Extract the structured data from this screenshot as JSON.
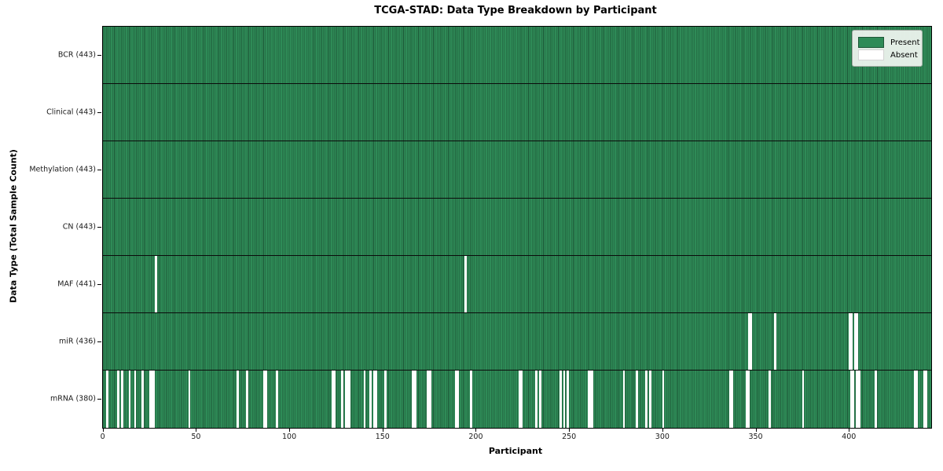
{
  "title": "TCGA-STAD: Data Type Breakdown by Participant",
  "colors": {
    "present": "#2e8b57",
    "present_edge": "#1d5737",
    "absent": "#ffffff",
    "row_separator": "#0b0b0b",
    "spine": "#000000"
  },
  "legend": {
    "present_label": "Present",
    "absent_label": "Absent",
    "position": "upper right"
  },
  "chart_data": {
    "type": "heatmap",
    "title": "TCGA-STAD: Data Type Breakdown by Participant",
    "xlabel": "Participant",
    "ylabel": "Data Type (Total Sample Count)",
    "legend": [
      "Present",
      "Absent"
    ],
    "legend_position": "upper right",
    "grid": false,
    "n_participants": 443,
    "x_ticks": [
      0,
      50,
      100,
      150,
      200,
      250,
      300,
      350,
      400
    ],
    "x_range": [
      0,
      443
    ],
    "cell_states": [
      "present",
      "absent"
    ],
    "rows": [
      {
        "key": "bcr",
        "label": "BCR (443)",
        "data_type": "BCR",
        "present_count": 443,
        "absent_count": 0,
        "absent_participants": []
      },
      {
        "key": "clinical",
        "label": "Clinical (443)",
        "data_type": "Clinical",
        "present_count": 443,
        "absent_count": 0,
        "absent_participants": []
      },
      {
        "key": "methylation",
        "label": "Methylation (443)",
        "data_type": "Methylation",
        "present_count": 443,
        "absent_count": 0,
        "absent_participants": []
      },
      {
        "key": "cn",
        "label": "CN (443)",
        "data_type": "CN",
        "present_count": 443,
        "absent_count": 0,
        "absent_participants": []
      },
      {
        "key": "maf",
        "label": "MAF (441)",
        "data_type": "MAF",
        "present_count": 441,
        "absent_count": 2,
        "absent_participants": [
          28,
          194
        ]
      },
      {
        "key": "mir",
        "label": "miR (436)",
        "data_type": "miR",
        "present_count": 436,
        "absent_count": 7,
        "absent_participants": [
          346,
          347,
          360,
          400,
          401,
          403,
          404
        ]
      },
      {
        "key": "mrna",
        "label": "mRNA (380)",
        "data_type": "mRNA",
        "present_count": 380,
        "absent_count": 63,
        "absent_participants": [
          2,
          8,
          10,
          14,
          17,
          21,
          25,
          26,
          27,
          46,
          72,
          77,
          86,
          87,
          93,
          123,
          124,
          128,
          130,
          131,
          132,
          140,
          143,
          145,
          146,
          151,
          166,
          167,
          174,
          175,
          189,
          190,
          197,
          223,
          224,
          232,
          234,
          245,
          247,
          249,
          260,
          261,
          262,
          279,
          286,
          291,
          293,
          300,
          336,
          337,
          345,
          346,
          357,
          375,
          401,
          402,
          404,
          405,
          414,
          435,
          436,
          440,
          441
        ]
      }
    ]
  }
}
